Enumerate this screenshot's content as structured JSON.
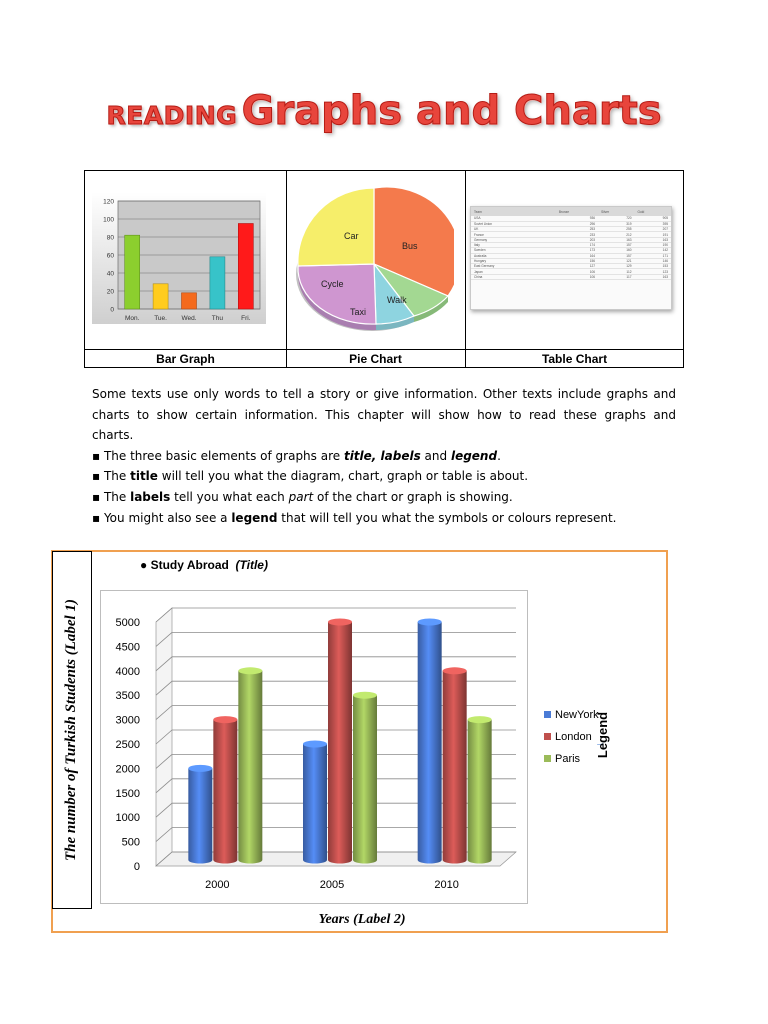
{
  "title": {
    "small": "READING",
    "big": "Graphs and Charts"
  },
  "examples": {
    "bar": {
      "caption": "Bar Graph",
      "categories": [
        "Mon.",
        "Tue.",
        "Wed.",
        "Thu",
        "Fri."
      ],
      "values": [
        82,
        28,
        18,
        58,
        95
      ],
      "colors": [
        "#8ccf2e",
        "#ffcc1e",
        "#f46a1c",
        "#37c3c9",
        "#ff1a1a"
      ],
      "yticks": [
        "0",
        "20",
        "40",
        "60",
        "80",
        "100",
        "120"
      ],
      "ylim": [
        0,
        120
      ]
    },
    "pie": {
      "caption": "Pie Chart",
      "slices": [
        {
          "label": "Car",
          "color": "#f6ee6a"
        },
        {
          "label": "Bus",
          "color": "#f47a4c"
        },
        {
          "label": "Walk",
          "color": "#a3d892"
        },
        {
          "label": "Taxi",
          "color": "#8ed4e0"
        },
        {
          "label": "Cycle",
          "color": "#cf96d0"
        }
      ]
    },
    "table": {
      "caption": "Table Chart",
      "headers": [
        "Team",
        "Bronze",
        "Silver",
        "Gold"
      ],
      "rows": [
        [
          "USA",
          "936",
          "720",
          "905"
        ],
        [
          "Soviet Union",
          "296",
          "319",
          "395"
        ],
        [
          "UK",
          "253",
          "255",
          "207"
        ],
        [
          "France",
          "233",
          "212",
          "191"
        ],
        [
          "Germany",
          "203",
          "163",
          "163"
        ],
        [
          "Italy",
          "174",
          "157",
          "190"
        ],
        [
          "Sweden",
          "173",
          "160",
          "142"
        ],
        [
          "Australia",
          "164",
          "157",
          "171"
        ],
        [
          "Hungary",
          "156",
          "121",
          "146"
        ],
        [
          "East Germany",
          "127",
          "129",
          "153"
        ],
        [
          "Japan",
          "106",
          "112",
          "123"
        ],
        [
          "China",
          "106",
          "117",
          "163"
        ]
      ]
    }
  },
  "body": {
    "para1": "Some texts use only words to tell a story or give information. Other texts include graphs and charts to show certain information. This chapter will show how to read these graphs and charts.",
    "b1": {
      "pre": "▪ The three basic elements of graphs are ",
      "em": "title, labels",
      "mid": " and ",
      "em2": "legend",
      "post": "."
    },
    "b2": {
      "pre": "▪ The ",
      "strong": "title",
      "post": " will tell you what the diagram, chart, graph or table is about."
    },
    "b3": {
      "pre": "▪ The ",
      "strong": "labels",
      "mid": " tell you what each ",
      "em": "part",
      "post": " of the chart or graph is showing."
    },
    "b4": {
      "pre": "▪ You might also see a ",
      "strong": "legend",
      "post": " that will tell you what the symbols or colours represent."
    }
  },
  "study": {
    "title_bullet": "●",
    "title_text": "Study Abroad",
    "title_tag": "(Title)",
    "label1": "The number of Turkish Students (Label 1)",
    "label2": "Years (Label 2)",
    "legend_label": "Legend",
    "legend_arrow": "→"
  },
  "chart_data": {
    "type": "bar",
    "categories": [
      "2000",
      "2005",
      "2010"
    ],
    "series": [
      {
        "name": "NewYork",
        "values": [
          2000,
          2500,
          5000
        ],
        "color": "#4a7bd6"
      },
      {
        "name": "London",
        "values": [
          3000,
          5000,
          4000
        ],
        "color": "#c0504d"
      },
      {
        "name": "Paris",
        "values": [
          4000,
          3500,
          3000
        ],
        "color": "#9bbb59"
      }
    ],
    "title": "Study Abroad",
    "xlabel": "Years (Label 2)",
    "ylabel": "The number of Turkish Students (Label 1)",
    "yticks": [
      "0",
      "500",
      "1000",
      "1500",
      "2000",
      "2500",
      "3000",
      "3500",
      "4000",
      "4500",
      "5000"
    ],
    "ylim": [
      0,
      5000
    ],
    "legend_placement": "right",
    "grid": true
  }
}
